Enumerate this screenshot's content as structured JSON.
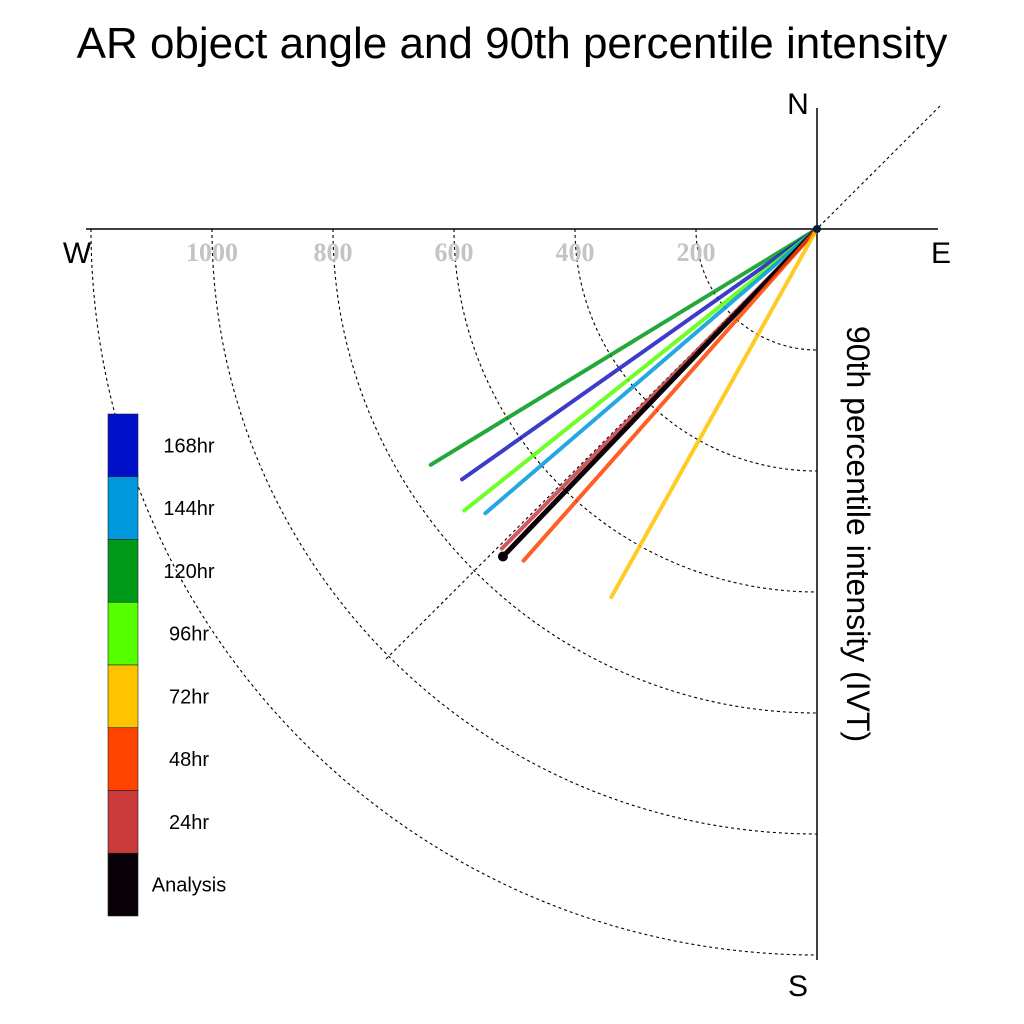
{
  "chart_data": {
    "type": "polar-vector",
    "title": "AR object angle and 90th percentile intensity",
    "ylabel": "90th percentile intensity (IVT)",
    "compass": {
      "north": "N",
      "south": "S",
      "east": "E",
      "west": "W"
    },
    "radial_ticks": [
      {
        "value": 200,
        "label": "200"
      },
      {
        "value": 400,
        "label": "400"
      },
      {
        "value": 600,
        "label": "600"
      },
      {
        "value": 800,
        "label": "800"
      },
      {
        "value": 1000,
        "label": "1000"
      }
    ],
    "radial_max": 1200,
    "series": [
      {
        "name": "120hr",
        "color": "#009a1a",
        "angle_deg": 238.6,
        "intensity": 748
      },
      {
        "name": "168hr",
        "color": "#1b1bc0",
        "angle_deg": 234.8,
        "intensity": 718
      },
      {
        "name": "96hr",
        "color": "#55ff00",
        "angle_deg": 231.4,
        "intensity": 746
      },
      {
        "name": "144hr",
        "color": "#0099dd",
        "angle_deg": 229.4,
        "intensity": 722
      },
      {
        "name": "24hr",
        "color": "#cc3b3b",
        "angle_deg": 224.6,
        "intensity": 742
      },
      {
        "name": "Analysis",
        "color": "#0a0008",
        "angle_deg": 223.8,
        "intensity": 750
      },
      {
        "name": "48hr",
        "color": "#ff4400",
        "angle_deg": 221.5,
        "intensity": 732
      },
      {
        "name": "72hr",
        "color": "#ffc400",
        "angle_deg": 209.2,
        "intensity": 697
      }
    ],
    "legend": {
      "placement": "left",
      "entries": [
        {
          "label": "168hr",
          "color": "#0010c8"
        },
        {
          "label": "144hr",
          "color": "#0099dd"
        },
        {
          "label": "120hr",
          "color": "#009a1a"
        },
        {
          "label": "96hr",
          "color": "#55ff00"
        },
        {
          "label": "72hr",
          "color": "#ffc400"
        },
        {
          "label": "48hr",
          "color": "#ff4400"
        },
        {
          "label": "24hr",
          "color": "#cc3b3b"
        },
        {
          "label": "Analysis",
          "color": "#0a0008"
        }
      ]
    }
  }
}
